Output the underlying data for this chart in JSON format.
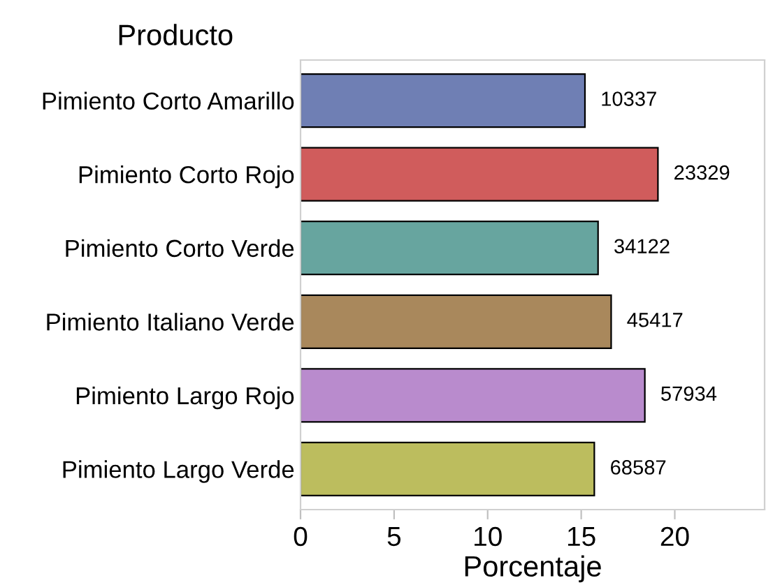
{
  "chart_data": {
    "type": "bar",
    "orientation": "horizontal",
    "ylabel": "Producto",
    "xlabel": "Porcentaje",
    "categories": [
      "Pimiento Corto Amarillo",
      "Pimiento Corto Rojo",
      "Pimiento Corto Verde",
      "Pimiento Italiano Verde",
      "Pimiento Largo Rojo",
      "Pimiento Largo Verde"
    ],
    "values": [
      15.2,
      19.1,
      15.9,
      16.6,
      18.4,
      15.7
    ],
    "colors": [
      "#6f7fb4",
      "#d05c5c",
      "#67a59f",
      "#a9885c",
      "#b98bcd",
      "#bcbd5e"
    ],
    "annotations": [
      {
        "text": "10337",
        "x": 15.2,
        "y": "Pimiento Corto Amarillo"
      },
      {
        "text": "23329",
        "x": 19.1,
        "y": "Pimiento Corto Rojo"
      },
      {
        "text": "34122",
        "x": 15.9,
        "y": "Pimiento Corto Verde"
      },
      {
        "text": "45417",
        "x": 16.6,
        "y": "Pimiento Italiano Verde"
      },
      {
        "text": "57934",
        "x": 18.4,
        "y": "Pimiento Largo Rojo"
      },
      {
        "text": "68587",
        "x": 15.7,
        "y": "Pimiento Largo Verde"
      }
    ],
    "xlim": [
      0,
      24.8
    ],
    "xticks": [
      0,
      5,
      10,
      15,
      20
    ],
    "grid": false
  }
}
